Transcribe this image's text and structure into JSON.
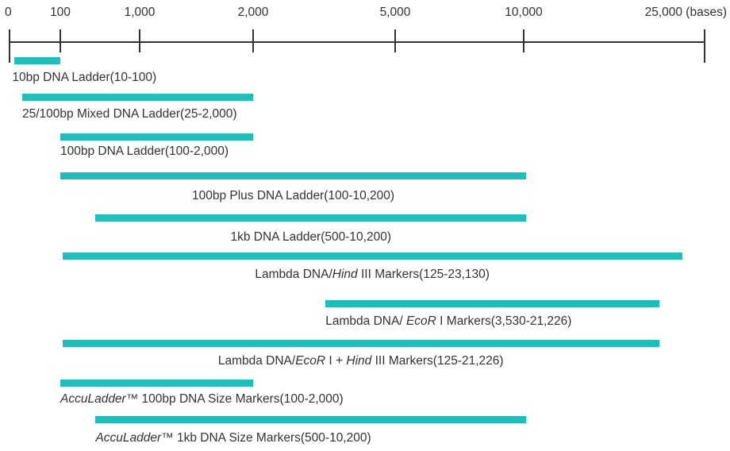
{
  "chart_data": {
    "type": "bar",
    "orientation": "horizontal-range",
    "axis": {
      "scale": "custom-nonlinear",
      "tick_labels": [
        "0",
        "100",
        "1,000",
        "2,000",
        "5,000",
        "10,000",
        "25,000 (bases)"
      ],
      "tick_values": [
        0,
        100,
        1000,
        2000,
        5000,
        10000,
        25000
      ],
      "range": [
        0,
        25000
      ]
    },
    "bar_color": "#22BDBA",
    "axis_color": "#333333",
    "ranges": [
      {
        "label": "10bp DNA Ladder(10-100)",
        "label_parts": [
          {
            "t": "10bp DNA Ladder(10-100)",
            "i": false
          }
        ],
        "start": 10,
        "end": 100,
        "label_anchor": "left"
      },
      {
        "label": "25/100bp Mixed DNA Ladder(25-2,000)",
        "label_parts": [
          {
            "t": "25/100bp Mixed DNA Ladder(25-2,000)",
            "i": false
          }
        ],
        "start": 25,
        "end": 2000,
        "label_anchor": "left"
      },
      {
        "label": "100bp DNA Ladder(100-2,000)",
        "label_parts": [
          {
            "t": "100bp DNA Ladder(100-2,000)",
            "i": false
          }
        ],
        "start": 100,
        "end": 2000,
        "label_anchor": "left"
      },
      {
        "label": "100bp Plus DNA Ladder(100-10,200)",
        "label_parts": [
          {
            "t": "100bp Plus DNA Ladder(100-10,200)",
            "i": false
          }
        ],
        "start": 100,
        "end": 10200,
        "label_anchor": "center"
      },
      {
        "label": "1kb DNA Ladder(500-10,200)",
        "label_parts": [
          {
            "t": "1kb DNA Ladder(500-10,200)",
            "i": false
          }
        ],
        "start": 500,
        "end": 10200,
        "label_anchor": "center"
      },
      {
        "label": "Lambda DNA/Hind III Markers(125-23,130)",
        "label_parts": [
          {
            "t": "Lambda DNA/",
            "i": false
          },
          {
            "t": "Hind",
            "i": true
          },
          {
            "t": " III Markers(125-23,130)",
            "i": false
          }
        ],
        "start": 125,
        "end": 23130,
        "label_anchor": "center"
      },
      {
        "label": "Lambda DNA/ EcoR I Markers(3,530-21,226)",
        "label_parts": [
          {
            "t": "Lambda DNA/ ",
            "i": false
          },
          {
            "t": "EcoR",
            "i": true
          },
          {
            "t": " I Markers(3,530-21,226)",
            "i": false
          }
        ],
        "start": 3530,
        "end": 21226,
        "label_anchor": "left"
      },
      {
        "label": "Lambda DNA/EcoR I + Hind III Markers(125-21,226)",
        "label_parts": [
          {
            "t": "Lambda DNA/",
            "i": false
          },
          {
            "t": "EcoR",
            "i": true
          },
          {
            "t": " I + ",
            "i": false
          },
          {
            "t": "Hind",
            "i": true
          },
          {
            "t": " III Markers(125-21,226)",
            "i": false
          }
        ],
        "start": 125,
        "end": 21226,
        "label_anchor": "center"
      },
      {
        "label": "AccuLadder™ 100bp DNA Size Markers(100-2,000)",
        "label_parts": [
          {
            "t": "AccuLadder",
            "i": true
          },
          {
            "t": "™ 100bp DNA Size Markers(100-2,000)",
            "i": false
          }
        ],
        "start": 100,
        "end": 2000,
        "label_anchor": "left"
      },
      {
        "label": "AccuLadder™ 1kb DNA Size Markers(500-10,200)",
        "label_parts": [
          {
            "t": "AccuLadder",
            "i": true
          },
          {
            "t": "™ 1kb DNA Size Markers(500-10,200)",
            "i": false
          }
        ],
        "start": 500,
        "end": 10200,
        "label_anchor": "left"
      }
    ]
  }
}
